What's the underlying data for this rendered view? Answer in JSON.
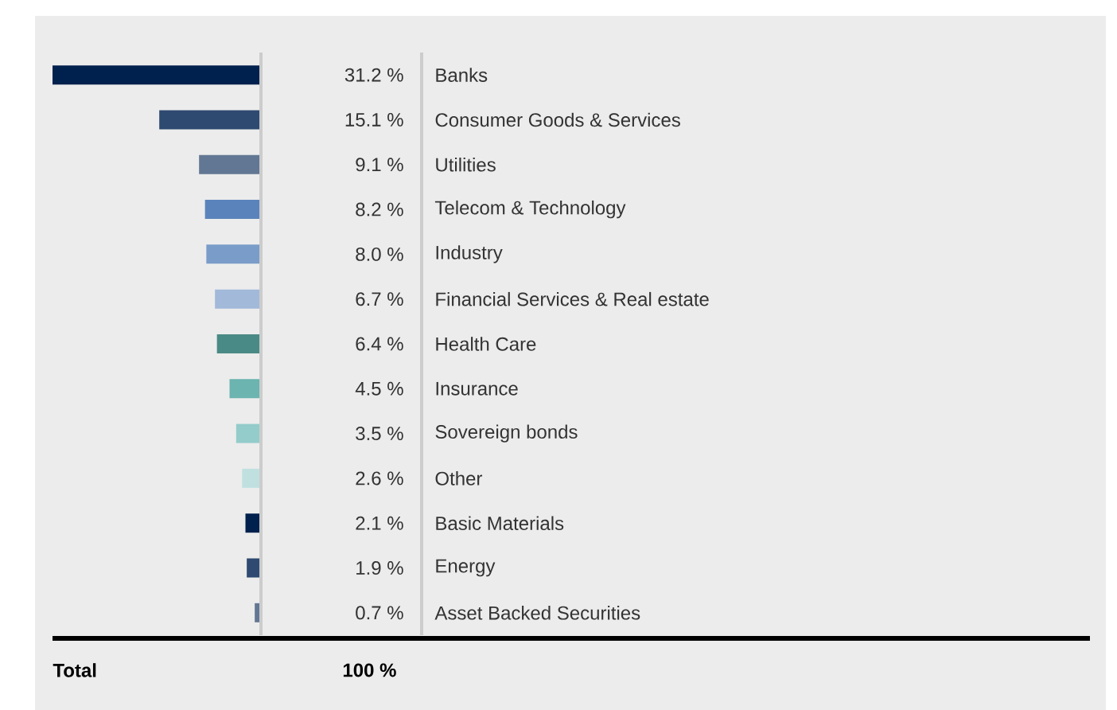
{
  "chart_data": {
    "type": "bar",
    "orientation": "horizontal",
    "categories": [
      "Banks",
      "Consumer Goods & Services",
      "Utilities",
      "Telecom & Technology",
      "Industry",
      "Financial Services & Real estate",
      "Health Care",
      "Insurance",
      "Sovereign bonds",
      "Other",
      "Basic Materials",
      "Energy",
      "Asset Backed Securities"
    ],
    "values": [
      31.2,
      15.1,
      9.1,
      8.2,
      8.0,
      6.7,
      6.4,
      4.5,
      3.5,
      2.6,
      2.1,
      1.9,
      0.7
    ],
    "colors": [
      "#00214d",
      "#2e4a70",
      "#627793",
      "#5a83bb",
      "#7a9cc9",
      "#a2b9da",
      "#4a8a86",
      "#6bb4b0",
      "#93ccca",
      "#c0e0e0",
      "#00214d",
      "#2e4a70",
      "#627793"
    ],
    "value_labels": [
      "31.2 %",
      "15.1 %",
      "9.1 %",
      "8.2 %",
      "8.0 %",
      "6.7 %",
      "6.4 %",
      "4.5 %",
      "3.5 %",
      "2.6 %",
      "2.1 %",
      "1.9 %",
      "0.7 %"
    ],
    "xlim": [
      31.2,
      0
    ],
    "annotations": [
      "Total",
      "100 %"
    ]
  }
}
